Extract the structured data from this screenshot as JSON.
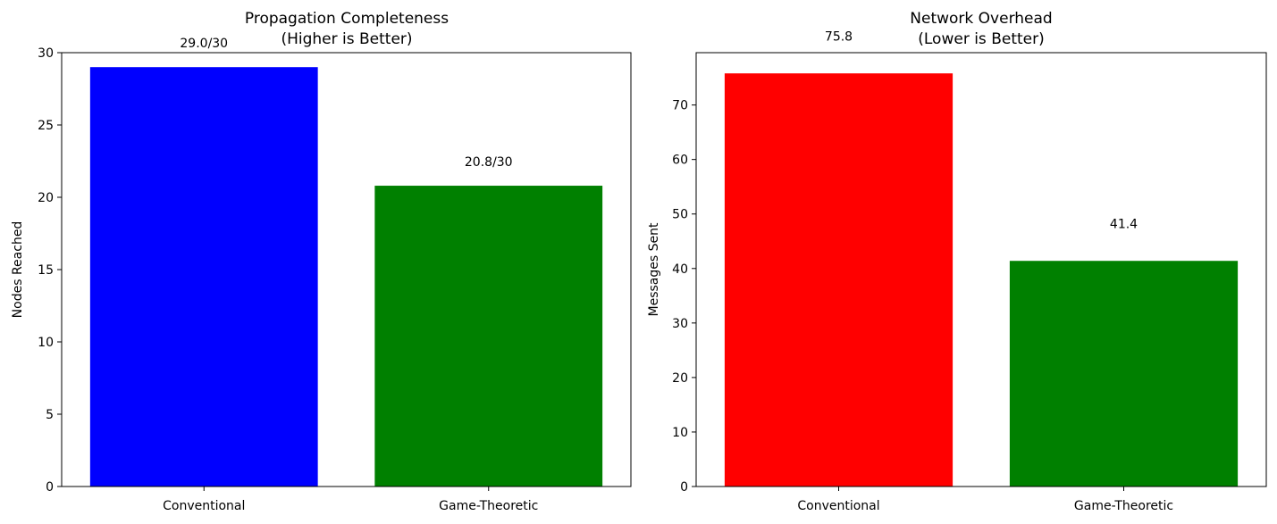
{
  "chart_data": [
    {
      "type": "bar",
      "title_line1": "Propagation Completeness",
      "title_line2": "(Higher is Better)",
      "xlabel": "",
      "ylabel": "Nodes Reached",
      "categories": [
        "Conventional",
        "Game-Theoretic"
      ],
      "values": [
        29.0,
        20.8
      ],
      "data_labels": [
        "29.0/30",
        "20.8/30"
      ],
      "colors": [
        "#0000ff",
        "#008000"
      ],
      "ylim": [
        0,
        30
      ],
      "yticks": [
        0,
        5,
        10,
        15,
        20,
        25,
        30
      ],
      "grid": false
    },
    {
      "type": "bar",
      "title_line1": "Network Overhead",
      "title_line2": "(Lower is Better)",
      "xlabel": "",
      "ylabel": "Messages Sent",
      "categories": [
        "Conventional",
        "Game-Theoretic"
      ],
      "values": [
        75.8,
        41.4
      ],
      "data_labels": [
        "75.8",
        "41.4"
      ],
      "colors": [
        "#ff0000",
        "#008000"
      ],
      "ylim": [
        0,
        79.6
      ],
      "yticks": [
        0,
        10,
        20,
        30,
        40,
        50,
        60,
        70
      ],
      "grid": false
    }
  ]
}
